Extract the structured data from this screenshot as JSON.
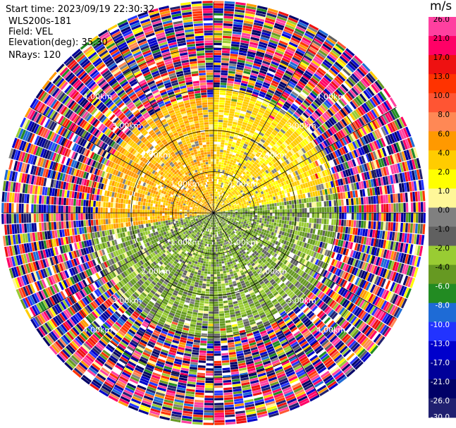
{
  "header": {
    "start_time": "Start time: 2023/09/19 22:30:32",
    "instrument": "WLS200s-181",
    "field": "Field: VEL",
    "elevation": "Elevation(deg): 35.30",
    "nrays": "NRays: 120"
  },
  "colorbar": {
    "unit": "m/s",
    "ticks": [
      "26.0",
      "21.0",
      "17.0",
      "13.0",
      "10.0",
      "8.0",
      "6.0",
      "4.0",
      "2.0",
      "1.0",
      "0.0",
      "-1.0",
      "-2.0",
      "-4.0",
      "-6.0",
      "-8.0",
      "-10.0",
      "-13.0",
      "-17.0",
      "-21.0",
      "-26.0",
      "-30.0"
    ],
    "colors": [
      "#ff40a0",
      "#ff0066",
      "#ee1111",
      "#ff3300",
      "#ff5533",
      "#ff8855",
      "#ff9900",
      "#ffcc00",
      "#ffff00",
      "#fff799",
      "#808080",
      "#606060",
      "#99cc33",
      "#669922",
      "#228b22",
      "#1e6bd6",
      "#2233ff",
      "#0000cc",
      "#000099",
      "#000066",
      "#202070"
    ]
  },
  "chart_data": {
    "type": "ppi",
    "field": "VEL",
    "nrays": 120,
    "elevation_deg": 35.3,
    "range_rings_km": [
      1.0,
      2.0,
      3.0,
      4.0
    ],
    "range_ring_labels": [
      "1.00km",
      "2.00km",
      "3.00km",
      "4.00km"
    ],
    "spoke_angles_deg": [
      0,
      30,
      60,
      90,
      120,
      150,
      180,
      210,
      240,
      270,
      300,
      330
    ],
    "vmin": -30.0,
    "vmax": 26.0,
    "sectors": [
      {
        "az_from": 260,
        "az_to": 360,
        "range_km": [
          0.0,
          2.8
        ],
        "velocity_range": [
          2.0,
          6.0
        ],
        "pattern": "receding"
      },
      {
        "az_from": 0,
        "az_to": 80,
        "range_km": [
          0.0,
          3.0
        ],
        "velocity_range": [
          1.0,
          4.0
        ],
        "pattern": "receding"
      },
      {
        "az_from": 80,
        "az_to": 260,
        "range_km": [
          0.0,
          3.0
        ],
        "velocity_range": [
          -6.0,
          -1.0
        ],
        "pattern": "approaching"
      },
      {
        "az_from": 0,
        "az_to": 360,
        "range_km": [
          3.0,
          5.0
        ],
        "velocity_range": [
          -30.0,
          26.0
        ],
        "pattern": "noise"
      }
    ]
  }
}
